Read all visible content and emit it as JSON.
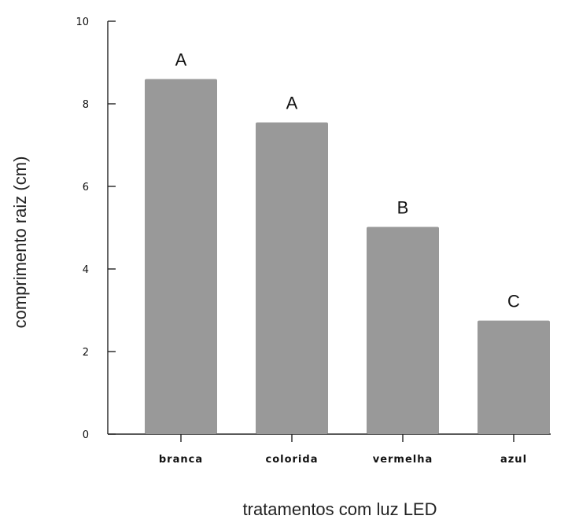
{
  "chart_data": {
    "type": "bar",
    "title": "",
    "xlabel": "tratamentos com luz LED",
    "ylabel": "comprimento raiz (cm)",
    "categories": [
      "branca",
      "colorida",
      "vermelha",
      "azul"
    ],
    "values": [
      8.6,
      7.55,
      5.02,
      2.75
    ],
    "significance_labels": [
      "A",
      "A",
      "B",
      "C"
    ],
    "ylim": [
      0,
      10
    ],
    "yticks": [
      0,
      2,
      4,
      6,
      8,
      10
    ],
    "bar_color": "#999999",
    "grid": false,
    "legend": "none"
  }
}
